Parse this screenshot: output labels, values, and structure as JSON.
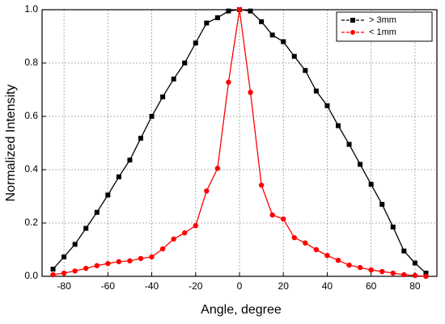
{
  "chart_data": {
    "type": "line",
    "xlabel": "Angle, degree",
    "ylabel": "Normalized Intensity",
    "x": [
      -85,
      -80,
      -75,
      -70,
      -65,
      -60,
      -55,
      -50,
      -45,
      -40,
      -35,
      -30,
      -25,
      -20,
      -15,
      -10,
      -5,
      0,
      5,
      10,
      15,
      20,
      25,
      30,
      35,
      40,
      45,
      50,
      55,
      60,
      65,
      70,
      75,
      80,
      85
    ],
    "series": [
      {
        "name": "> 3mm",
        "color": "#000000",
        "marker": "square",
        "values": [
          0.027,
          0.073,
          0.12,
          0.18,
          0.24,
          0.305,
          0.373,
          0.436,
          0.518,
          0.6,
          0.673,
          0.74,
          0.8,
          0.875,
          0.95,
          0.97,
          0.995,
          1.0,
          0.995,
          0.955,
          0.905,
          0.88,
          0.825,
          0.772,
          0.695,
          0.64,
          0.565,
          0.495,
          0.42,
          0.345,
          0.27,
          0.185,
          0.095,
          0.05,
          0.012
        ]
      },
      {
        "name": "< 1mm",
        "color": "#ff0000",
        "marker": "circle",
        "values": [
          0.006,
          0.012,
          0.02,
          0.03,
          0.04,
          0.048,
          0.055,
          0.058,
          0.067,
          0.073,
          0.103,
          0.14,
          0.163,
          0.19,
          0.32,
          0.405,
          0.728,
          1.0,
          0.69,
          0.342,
          0.23,
          0.215,
          0.145,
          0.125,
          0.1,
          0.078,
          0.06,
          0.042,
          0.033,
          0.024,
          0.018,
          0.012,
          0.006,
          0.003,
          0.0
        ]
      }
    ],
    "xlim": [
      -90,
      90
    ],
    "xticks": [
      -80,
      -60,
      -40,
      -20,
      0,
      20,
      40,
      60,
      80
    ],
    "ylim": [
      0,
      1
    ],
    "yticks": [
      {
        "value": 0,
        "label": "0.0"
      },
      {
        "value": 0.2,
        "label": "0.2"
      },
      {
        "value": 0.4,
        "label": "0.4"
      },
      {
        "value": 0.6,
        "label": "0.6"
      },
      {
        "value": 0.8,
        "label": "0.8"
      },
      {
        "value": 1,
        "label": "1.0"
      }
    ],
    "grid": true,
    "legend": "upper right"
  }
}
